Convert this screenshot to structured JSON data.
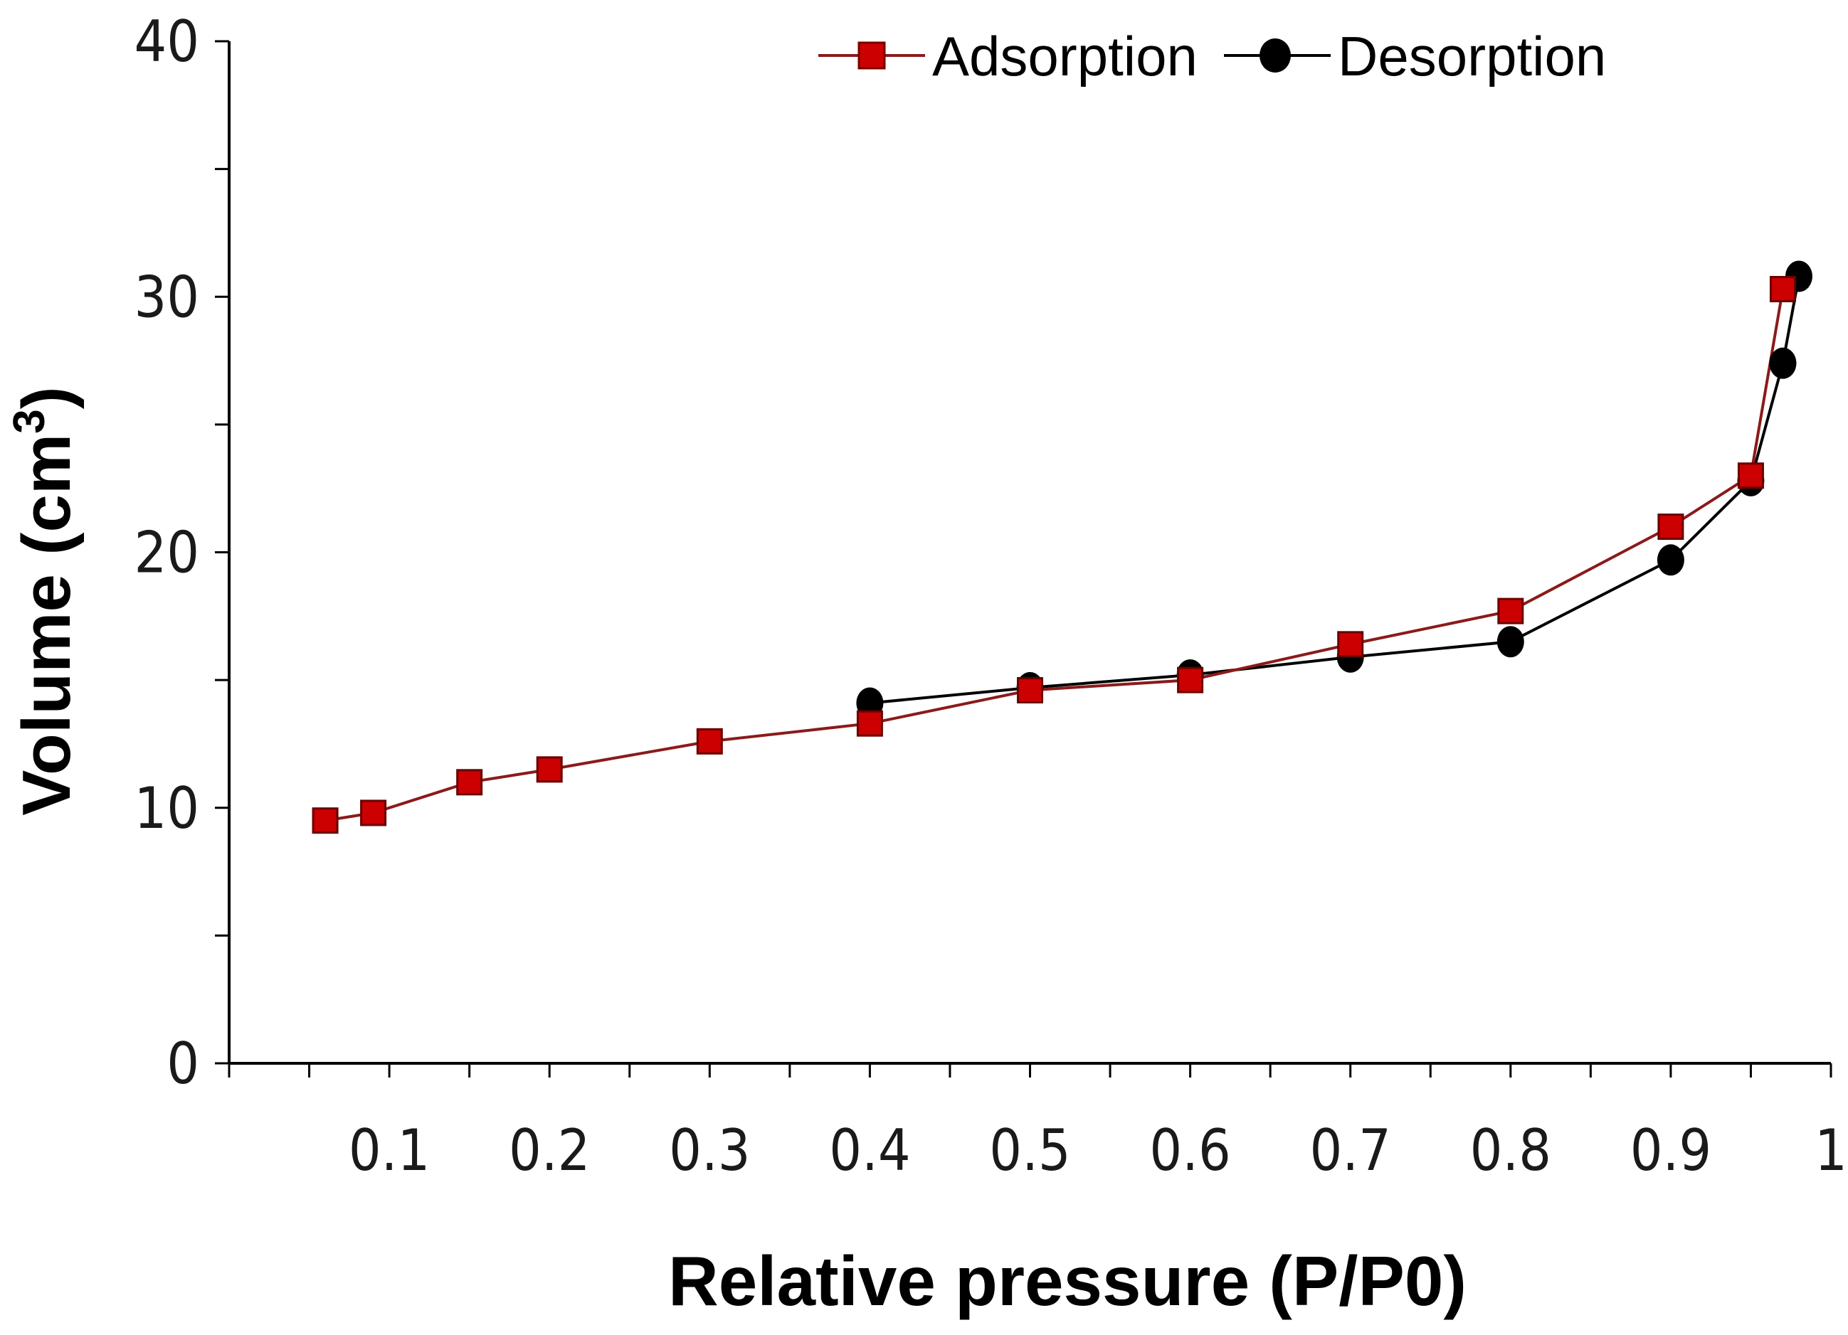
{
  "chart_data": {
    "type": "line",
    "title": "",
    "xlabel": "Relative pressure  (P/P0)",
    "ylabel": "Volume (cm",
    "ylabel_sup": "3",
    "ylabel_close": ")",
    "xlim": [
      0,
      1
    ],
    "ylim": [
      0,
      40
    ],
    "x_ticks": [
      0.1,
      0.2,
      0.3,
      0.4,
      0.5,
      0.6,
      0.7,
      0.8,
      0.9,
      1
    ],
    "x_tick_labels": [
      "0.1",
      "0.2",
      "0.3",
      "0.4",
      "0.5",
      "0.6",
      "0.7",
      "0.8",
      "0.9",
      "1"
    ],
    "y_ticks": [
      0,
      10,
      20,
      30,
      40
    ],
    "y_tick_labels": [
      "0",
      "10",
      "20",
      "30",
      "40"
    ],
    "grid": false,
    "legend_position": "top",
    "series": [
      {
        "name": "Adsorption",
        "marker": "square",
        "line_color": "#8b1a1a",
        "marker_color": "#cc0000",
        "x": [
          0.06,
          0.09,
          0.15,
          0.2,
          0.3,
          0.4,
          0.5,
          0.6,
          0.7,
          0.8,
          0.9,
          0.95,
          0.97
        ],
        "y": [
          9.5,
          9.8,
          11.0,
          11.5,
          12.6,
          13.3,
          14.6,
          15.0,
          16.4,
          17.7,
          21.0,
          23.0,
          30.3
        ]
      },
      {
        "name": "Desorption",
        "marker": "circle",
        "line_color": "#000000",
        "marker_color": "#000000",
        "x": [
          0.98,
          0.97,
          0.95,
          0.9,
          0.8,
          0.7,
          0.6,
          0.5,
          0.4
        ],
        "y": [
          30.8,
          27.4,
          22.8,
          19.7,
          16.5,
          15.9,
          15.2,
          14.7,
          14.1
        ]
      }
    ]
  }
}
